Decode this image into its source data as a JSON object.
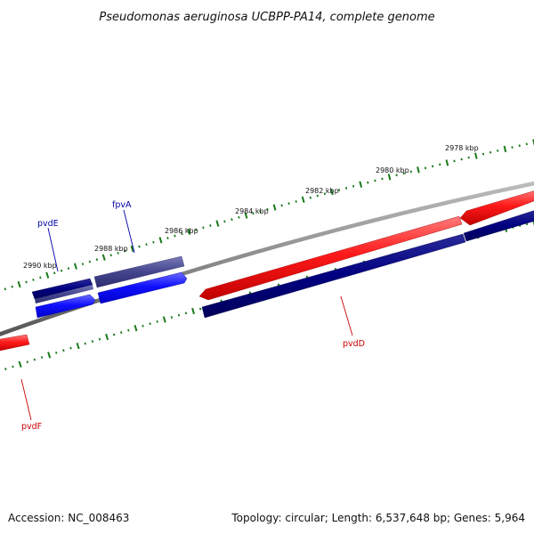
{
  "title": "Pseudomonas aeruginosa UCBPP-PA14, complete genome",
  "footer": {
    "accession": "Accession: NC_008463",
    "summary": "Topology: circular; Length: 6,537,648 bp; Genes: 5,964"
  },
  "scale_labels": [
    "2978 kbp",
    "2980 kbp",
    "2982 kbp",
    "2984 kbp",
    "2986 kbp",
    "2988 kbp",
    "2990 kbp"
  ],
  "genes": [
    {
      "name": "pvdE",
      "color": "#0000aa"
    },
    {
      "name": "fpvA",
      "color": "#0000aa"
    },
    {
      "name": "pvdD",
      "color": "#cc0000"
    },
    {
      "name": "pvdF",
      "color": "#cc0000"
    }
  ],
  "colors": {
    "backbone": "#8c8c8c",
    "tick": "#1a7a1a",
    "forward_feature": "#ff0000",
    "forward_cds": "#0000ff",
    "reverse_feature": "#000080",
    "reverse_cds": "#4a4a9a"
  }
}
